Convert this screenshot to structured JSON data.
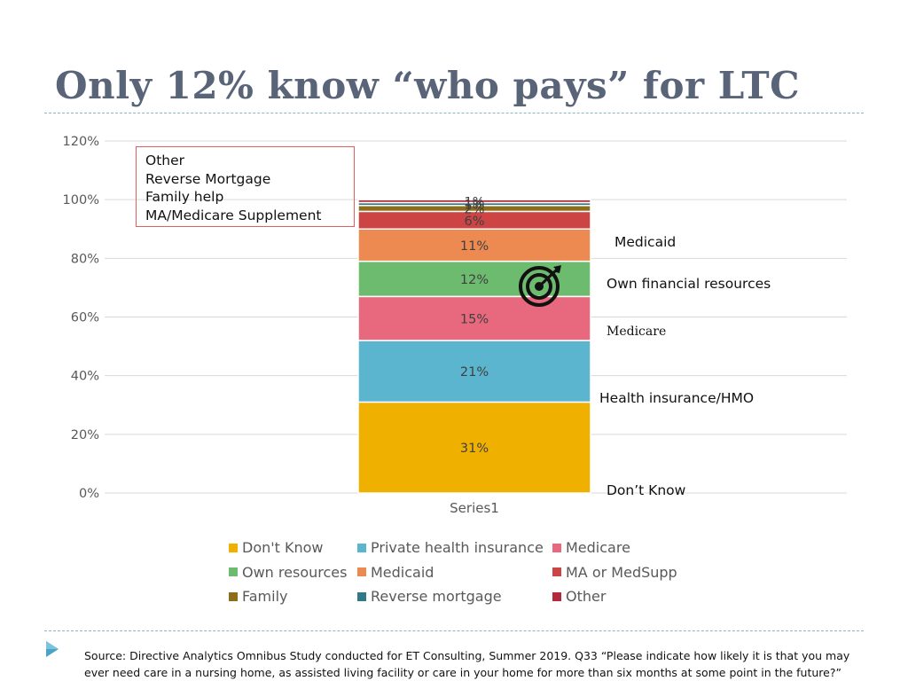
{
  "slide": {
    "title": "Only 12% know “who pays” for LTC",
    "source": "Source:  Directive Analytics Omnibus Study conducted for ET Consulting, Summer 2019. Q33  “Please indicate how likely it is that you may ever need care in a nursing home, as assisted living facility  or care in your home for more than six months at some point in the future?”"
  },
  "callout_box": {
    "lines": [
      "Other",
      "Reverse Mortgage",
      "Family help",
      "MA/Medicare Supplement"
    ]
  },
  "annotations": {
    "medicaid": "Medicaid",
    "own": "Own financial resources",
    "medicare": "Medicare",
    "health": "Health insurance/HMO",
    "dont_know": "Don’t Know"
  },
  "icons": {
    "target": "target-icon",
    "bullet": "play-triangle-icon"
  },
  "chart_data": {
    "type": "bar",
    "stacked": true,
    "categories": [
      "Series1"
    ],
    "y_ticks": [
      "0%",
      "20%",
      "40%",
      "60%",
      "80%",
      "100%",
      "120%"
    ],
    "ylim": [
      0,
      120
    ],
    "grid": true,
    "legend_position": "bottom",
    "series": [
      {
        "name": "Don't Know",
        "value": 31,
        "label": "31%",
        "color": "#f0b000"
      },
      {
        "name": "Private health insurance",
        "value": 21,
        "label": "21%",
        "color": "#5bb5cf"
      },
      {
        "name": "Medicare",
        "value": 15,
        "label": "15%",
        "color": "#e8697d"
      },
      {
        "name": "Own resources",
        "value": 12,
        "label": "12%",
        "color": "#6dbb6e"
      },
      {
        "name": "Medicaid",
        "value": 11,
        "label": "11%",
        "color": "#ec8a52"
      },
      {
        "name": "MA or MedSupp",
        "value": 6,
        "label": "6%",
        "color": "#cc4444"
      },
      {
        "name": "Family",
        "value": 2,
        "label": "2%",
        "color": "#8c6d1a"
      },
      {
        "name": "Reverse mortgage",
        "value": 1,
        "label": "1%",
        "color": "#2f7a86"
      },
      {
        "name": "Other",
        "value": 1,
        "label": "1%",
        "color": "#b22a3b"
      }
    ]
  }
}
